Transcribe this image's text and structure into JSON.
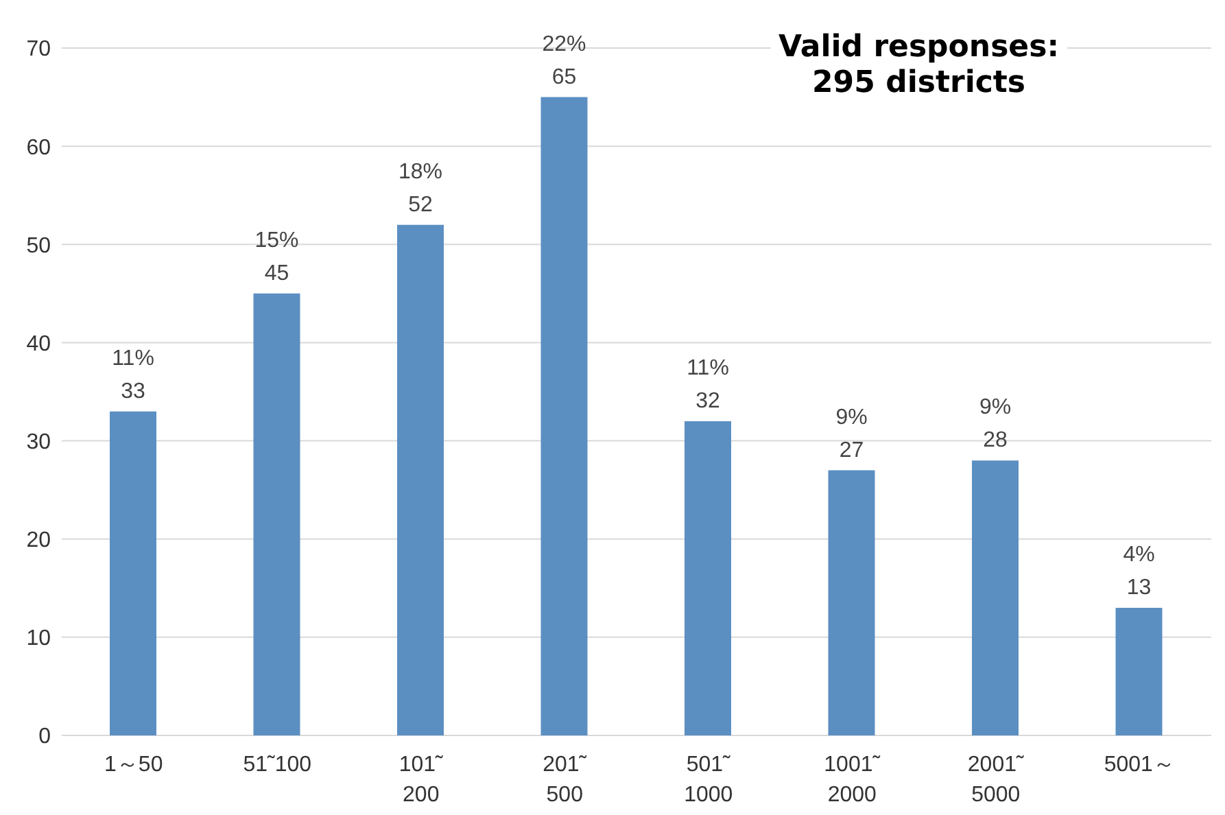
{
  "chart_data": {
    "type": "bar",
    "categories": [
      "1～50",
      "51˜100",
      "101˜\n200",
      "201˜\n500",
      "501˜\n1000",
      "1001˜\n2000",
      "2001˜\n5000",
      "5001～"
    ],
    "values": [
      33,
      45,
      52,
      65,
      32,
      27,
      28,
      13
    ],
    "value_labels": [
      "11%\n33",
      "15%\n45",
      "18%\n52",
      "22%\n65",
      "11%\n32",
      "9%\n27",
      "9%\n28",
      "4%\n13"
    ],
    "color": "#5b8fc2",
    "ylim": [
      0,
      70
    ],
    "yticks": [
      0,
      10,
      20,
      30,
      40,
      50,
      60,
      70
    ],
    "grid": "y",
    "annotations": [
      "Valid responses:\n295 districts"
    ]
  }
}
